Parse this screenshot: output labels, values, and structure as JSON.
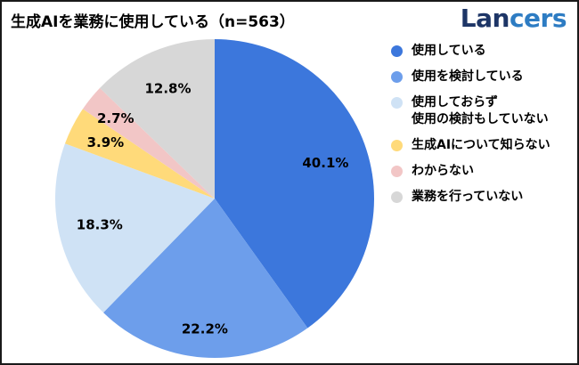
{
  "header": {
    "title": "生成AIを業務に使用している（n=563）",
    "logo": {
      "text": "Lancers",
      "part1": "Lan",
      "part2": "cers",
      "color1": "#1d3566",
      "color2": "#2d7cc3"
    }
  },
  "chart_data": {
    "type": "pie",
    "title": "生成AIを業務に使用している（n=563）",
    "sample_size_label": "n=563",
    "start_angle_deg": 0,
    "direction": "clockwise",
    "center": [
      239,
      221
    ],
    "radius": 179,
    "legend_position": "right",
    "label_color": "#000000",
    "slices": [
      {
        "label": "使用している",
        "label_lines": [
          "使用している"
        ],
        "value": 40.1,
        "display": "40.1%",
        "color": "#3c77dc",
        "label_r": 0.73
      },
      {
        "label": "使用を検討している",
        "label_lines": [
          "使用を検討している"
        ],
        "value": 22.2,
        "display": "22.2%",
        "color": "#6d9eeb",
        "label_r": 0.82
      },
      {
        "label": "使用しておらず使用の検討もしていない",
        "label_lines": [
          "使用しておらず",
          "使用の検討もしていない"
        ],
        "value": 18.3,
        "display": "18.3%",
        "color": "#cfe2f5",
        "label_r": 0.74
      },
      {
        "label": "生成AIについて知らない",
        "label_lines": [
          "生成AIについて知らない"
        ],
        "value": 3.9,
        "display": "3.9%",
        "color": "#ffda7a",
        "label_r": 0.77
      },
      {
        "label": "わからない",
        "label_lines": [
          "わからない"
        ],
        "value": 2.7,
        "display": "2.7%",
        "color": "#f2c6c6",
        "label_r": 0.8
      },
      {
        "label": "業務を行っていない",
        "label_lines": [
          "業務を行っていない"
        ],
        "value": 12.8,
        "display": "12.8%",
        "color": "#d7d7d7",
        "label_r": 0.75
      }
    ]
  }
}
